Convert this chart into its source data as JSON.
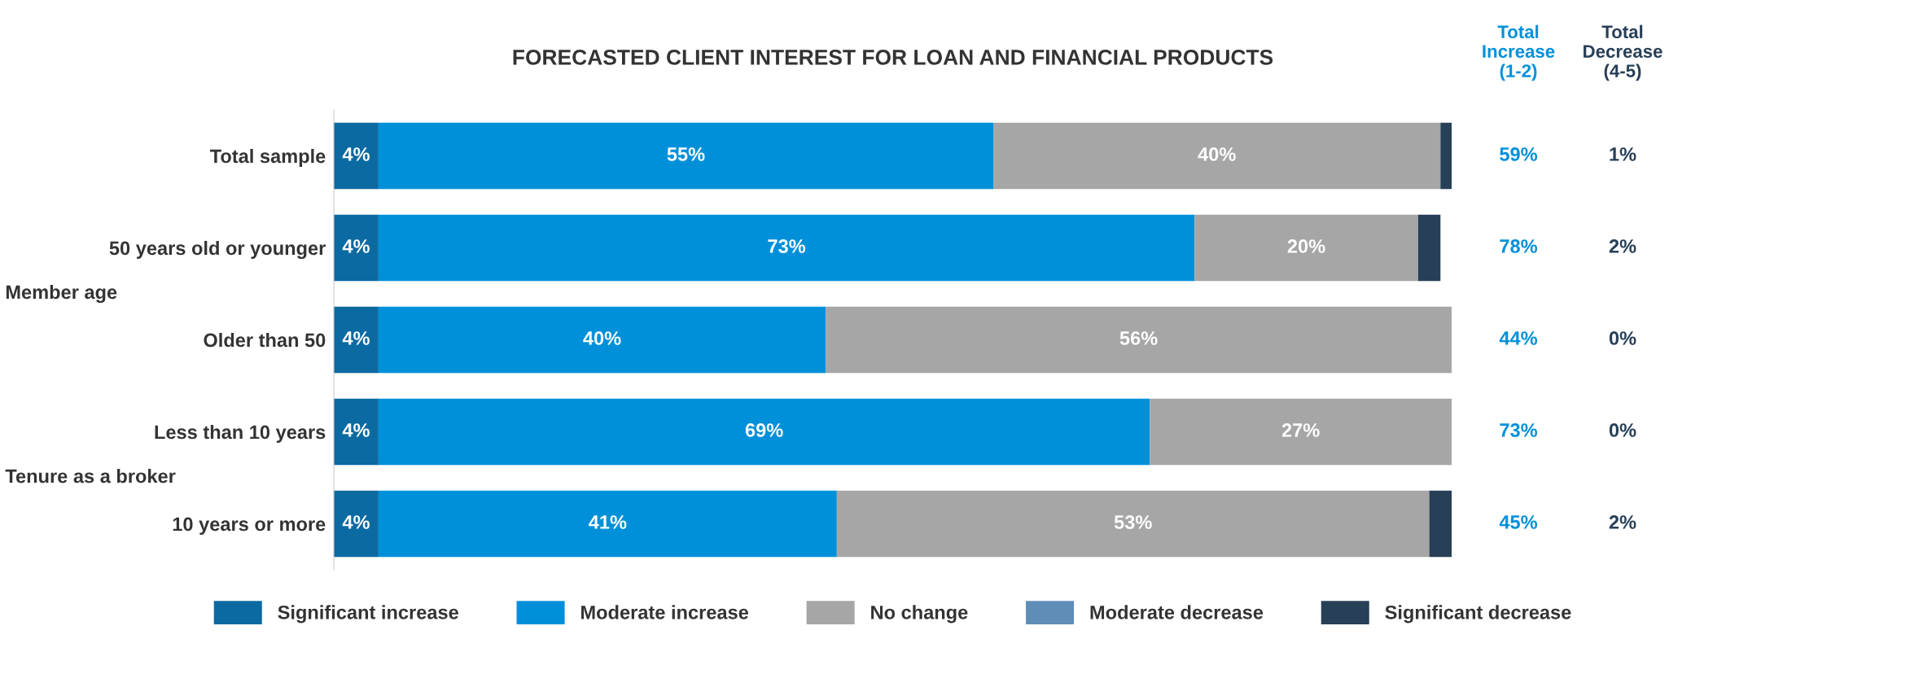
{
  "chart_data": {
    "type": "bar",
    "orientation": "horizontal",
    "stacked": true,
    "title": "FORECASTED CLIENT INTEREST FOR LOAN AND FINANCIAL PRODUCTS",
    "categories": [
      "Total sample",
      "50 years old or younger",
      "Older than 50",
      "Less than 10 years",
      "10 years or more"
    ],
    "series": [
      {
        "name": "Significant increase",
        "color": "#0b6aa2",
        "values": [
          4,
          4,
          4,
          4,
          4
        ],
        "value_labels": [
          "4%",
          "4%",
          "4%",
          "4%",
          "4%"
        ]
      },
      {
        "name": "Moderate increase",
        "color": "#0090da",
        "values": [
          55,
          73,
          40,
          69,
          41
        ],
        "value_labels": [
          "55%",
          "73%",
          "40%",
          "69%",
          "41%"
        ]
      },
      {
        "name": "No change",
        "color": "#a5a6a5",
        "values": [
          40,
          20,
          56,
          27,
          53
        ],
        "value_labels": [
          "40%",
          "20%",
          "56%",
          "27%",
          "53%"
        ]
      },
      {
        "name": "Moderate decrease",
        "color": "#5f8db8",
        "values": [
          0,
          0,
          0,
          0,
          0
        ],
        "value_labels": [
          null,
          null,
          null,
          null,
          null
        ]
      },
      {
        "name": "Significant decrease",
        "color": "#273f57",
        "values": [
          1,
          2,
          0,
          0,
          2
        ],
        "value_labels": [
          null,
          null,
          null,
          null,
          null
        ]
      }
    ],
    "xlim": [
      0,
      100
    ],
    "tick_labels": "y",
    "grid": false,
    "legend": "bottom",
    "annotations": [
      "Member age",
      "Tenure as a broker",
      "Total Increase (1-2)",
      "Total Decrease (4-5)",
      "59%",
      "78%",
      "44%",
      "73%",
      "45%",
      "1%",
      "2%",
      "0%",
      "0%",
      "2%"
    ]
  }
}
